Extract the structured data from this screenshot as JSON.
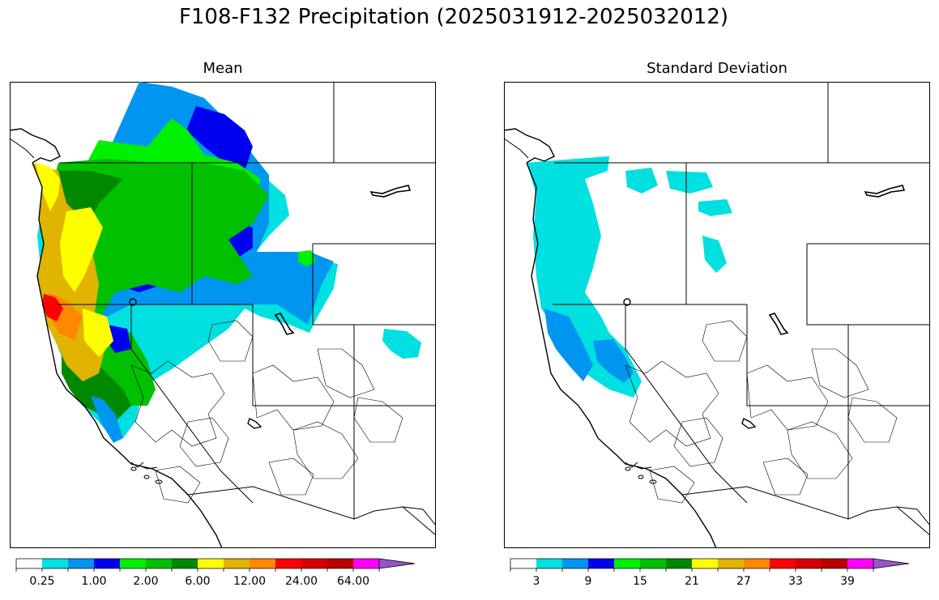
{
  "title": "F108-F132 Precipitation (2025031912-2025032012)",
  "panels": [
    {
      "title": "Mean",
      "colorbar_ticks": [
        "0.25",
        "1.00",
        "2.00",
        "6.00",
        "12.00",
        "24.00",
        "64.00"
      ],
      "colorbar_tick_bins": [
        1,
        3,
        5,
        7,
        9,
        11,
        13
      ]
    },
    {
      "title": "Standard Deviation",
      "colorbar_ticks": [
        "3",
        "9",
        "15",
        "21",
        "27",
        "33",
        "39"
      ],
      "colorbar_tick_bins": [
        1,
        3,
        5,
        7,
        9,
        11,
        13
      ]
    }
  ],
  "colorbar_colors": [
    "#ffffff",
    "#00e0e0",
    "#0096f0",
    "#0000f0",
    "#00f000",
    "#00c000",
    "#008800",
    "#ffff00",
    "#e0b400",
    "#ff8800",
    "#ff0000",
    "#d40000",
    "#b80000",
    "#ff00ff",
    "#9955c8"
  ],
  "colorbar_extend": "max",
  "map_colors": {
    "mean": {
      "light_blue": "#00e0e0",
      "mid_blue": "#0096f0",
      "blue": "#0000f0",
      "lime": "#00f000",
      "green": "#00c000",
      "dark_green": "#008800",
      "yellow": "#ffff00",
      "gold": "#e0b400",
      "orange": "#ff8800",
      "red": "#ff0000"
    },
    "std": {
      "light_blue": "#00e0e0",
      "mid_blue": "#0096f0"
    }
  }
}
